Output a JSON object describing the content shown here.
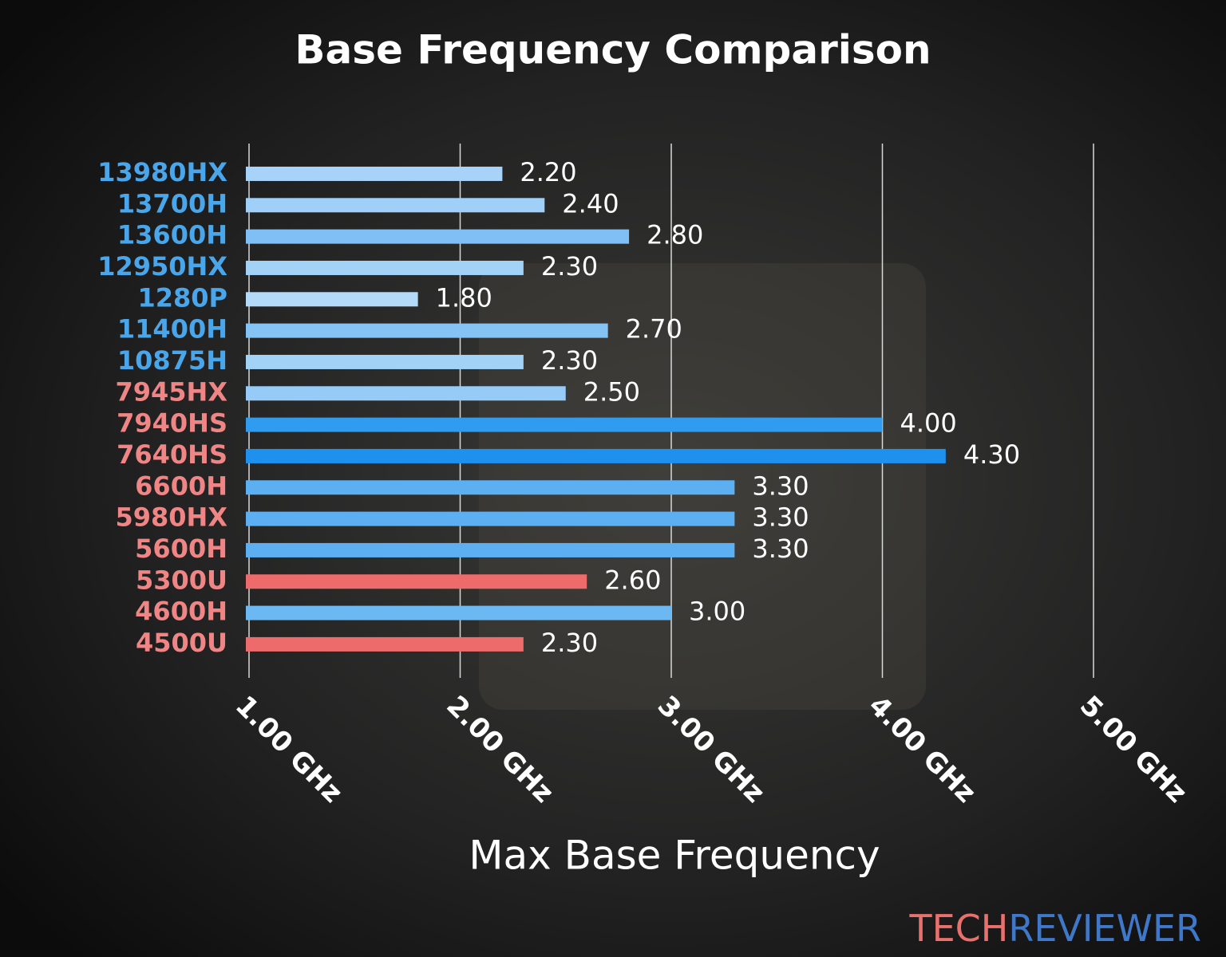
{
  "chart_data": {
    "type": "barh",
    "title": "Base Frequency Comparison",
    "x_label": "Max Base Frequency",
    "categories": [
      "13980HX",
      "13700H",
      "13600H",
      "12950HX",
      "1280P",
      "11400H",
      "10875H",
      "7945HX",
      "7940HS",
      "7640HS",
      "6600H",
      "5980HX",
      "5600H",
      "5300U",
      "4600H",
      "4500U"
    ],
    "category_colors": [
      "#4aa6ea",
      "#4aa6ea",
      "#4aa6ea",
      "#4aa6ea",
      "#4aa6ea",
      "#4aa6ea",
      "#4aa6ea",
      "#f08585",
      "#f08585",
      "#f08585",
      "#f08585",
      "#f08585",
      "#f08585",
      "#f08585",
      "#f08585",
      "#f08585"
    ],
    "values": [
      2.2,
      2.4,
      2.8,
      2.3,
      1.8,
      2.7,
      2.3,
      2.5,
      4.0,
      4.3,
      3.3,
      3.3,
      3.3,
      2.6,
      3.0,
      2.3
    ],
    "value_labels": [
      "2.20",
      "2.40",
      "2.80",
      "2.30",
      "1.80",
      "2.70",
      "2.30",
      "2.50",
      "4.00",
      "4.30",
      "3.30",
      "3.30",
      "3.30",
      "2.60",
      "3.00",
      "2.30"
    ],
    "colors": [
      "#a6d3f7",
      "#a0d0f8",
      "#7fbff5",
      "#a3d2f7",
      "#b3dbf9",
      "#86c3f5",
      "#a3d2f7",
      "#96cbf7",
      "#2f9cf0",
      "#1e90ee",
      "#5cb0f2",
      "#5cb0f2",
      "#5cb0f2",
      "#ee6b6b",
      "#6cb8f3",
      "#ee6b6b"
    ],
    "xlim": [
      1,
      5
    ],
    "xticks": [
      {
        "value": 1,
        "label": "1.00 GHz"
      },
      {
        "value": 2,
        "label": "2.00 GHz"
      },
      {
        "value": 3,
        "label": "3.00 GHz"
      },
      {
        "value": 4,
        "label": "4.00 GHz"
      },
      {
        "value": 5,
        "label": "5.00 GHz"
      }
    ],
    "grid": true,
    "watermark": [
      "TECH",
      "REVIEWER"
    ]
  }
}
